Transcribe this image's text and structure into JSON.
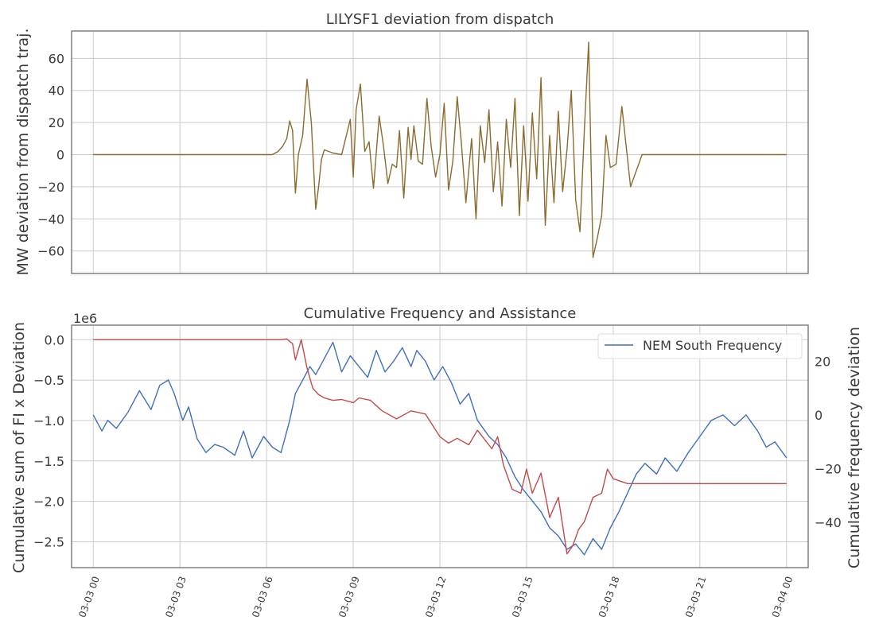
{
  "chart_data": [
    {
      "type": "line",
      "title": "LILYSF1 deviation from dispatch",
      "ylabel": "MW deviation from dispatch traj.",
      "xlim": [
        -0.75,
        24.75
      ],
      "ylim": [
        -74,
        77
      ],
      "yticks": [
        60,
        40,
        20,
        0,
        -20,
        -40,
        -60
      ],
      "ytick_labels": [
        "60",
        "40",
        "20",
        "0",
        "−20",
        "−40",
        "−60"
      ],
      "grid": true,
      "series": [
        {
          "color": "#8b6b2e",
          "x": [
            0,
            6.2,
            6.4,
            6.55,
            6.7,
            6.8,
            6.9,
            7.0,
            7.1,
            7.25,
            7.4,
            7.55,
            7.7,
            7.8,
            7.9,
            8.0,
            8.3,
            8.6,
            8.9,
            9.0,
            9.1,
            9.25,
            9.4,
            9.55,
            9.7,
            9.9,
            10.05,
            10.2,
            10.35,
            10.5,
            10.6,
            10.75,
            10.9,
            11.0,
            11.1,
            11.25,
            11.4,
            11.55,
            11.7,
            11.85,
            12.0,
            12.15,
            12.3,
            12.45,
            12.6,
            12.75,
            12.9,
            13.1,
            13.25,
            13.4,
            13.55,
            13.7,
            13.85,
            14.0,
            14.15,
            14.3,
            14.45,
            14.6,
            14.75,
            14.9,
            15.05,
            15.2,
            15.35,
            15.5,
            15.65,
            15.8,
            15.95,
            16.1,
            16.25,
            16.4,
            16.55,
            16.7,
            16.85,
            17.0,
            17.15,
            17.3,
            17.45,
            17.6,
            17.75,
            17.9,
            18.1,
            18.3,
            18.6,
            19.0,
            24
          ],
          "y": [
            0,
            0,
            2,
            5,
            10,
            21,
            15,
            -24,
            0,
            12,
            47,
            20,
            -34,
            -20,
            -3,
            3,
            1,
            0,
            22,
            -14,
            28,
            44,
            2,
            8,
            -21,
            24,
            5,
            -18,
            -6,
            -8,
            15,
            -27,
            17,
            -3,
            18,
            -4,
            -6,
            35,
            5,
            -14,
            0,
            32,
            -22,
            -4,
            36,
            6,
            -30,
            10,
            -40,
            18,
            -5,
            28,
            -23,
            8,
            -32,
            22,
            -8,
            35,
            -38,
            18,
            -29,
            26,
            -15,
            48,
            -44,
            12,
            -30,
            27,
            -23,
            3,
            40,
            -28,
            -48,
            15,
            70,
            -64,
            -52,
            -38,
            12,
            -8,
            -6,
            30,
            -20,
            0,
            0
          ]
        }
      ]
    },
    {
      "type": "line",
      "title": "Cumulative Frequency and Assistance",
      "ylabel": "Cumulative sum of FI x Deviation",
      "y2label": "Cumulative frequency deviation",
      "offset_label": "1e6",
      "xlim": [
        -0.75,
        24.75
      ],
      "ylim": [
        -2.82,
        0.18
      ],
      "y2lim": [
        -56.8,
        33.4
      ],
      "yticks": [
        0.0,
        -0.5,
        -1.0,
        -1.5,
        -2.0,
        -2.5
      ],
      "ytick_labels": [
        "0.0",
        "−0.5",
        "−1.0",
        "−1.5",
        "−2.0",
        "−2.5"
      ],
      "y2ticks": [
        20,
        0,
        -20,
        -40
      ],
      "y2tick_labels": [
        "20",
        "0",
        "−20",
        "−40"
      ],
      "xtick_positions": [
        0,
        3,
        6,
        9,
        12,
        15,
        18,
        21,
        24
      ],
      "xticks": [
        "03-03 00",
        "03-03 03",
        "03-03 06",
        "03-03 09",
        "03-03 12",
        "03-03 15",
        "03-03 18",
        "03-03 21",
        "03-04 00"
      ],
      "grid": true,
      "legend": {
        "placement": "top-right",
        "entries": [
          "NEM South Frequency"
        ]
      },
      "series": [
        {
          "name": "NEM South Frequency",
          "axis": "right",
          "color": "#3f6fbf",
          "x": [
            0,
            0.3,
            0.5,
            0.8,
            1.2,
            1.6,
            2.0,
            2.3,
            2.6,
            2.8,
            3.1,
            3.3,
            3.6,
            3.9,
            4.2,
            4.5,
            4.9,
            5.2,
            5.5,
            5.9,
            6.2,
            6.5,
            6.8,
            7.0,
            7.2,
            7.5,
            7.7,
            8.0,
            8.3,
            8.6,
            8.9,
            9.2,
            9.5,
            9.8,
            10.1,
            10.4,
            10.7,
            11.0,
            11.2,
            11.5,
            11.8,
            12.1,
            12.4,
            12.7,
            13.0,
            13.3,
            13.7,
            14.0,
            14.3,
            14.6,
            14.9,
            15.2,
            15.5,
            15.8,
            16.1,
            16.4,
            16.7,
            17.0,
            17.3,
            17.6,
            17.9,
            18.2,
            18.5,
            18.8,
            19.1,
            19.5,
            19.8,
            20.2,
            20.6,
            21.0,
            21.4,
            21.8,
            22.2,
            22.6,
            23.0,
            23.3,
            23.6,
            24.0
          ],
          "y": [
            0,
            -6,
            -2,
            -5,
            1,
            9,
            2,
            11,
            13,
            8,
            -2,
            3,
            -9,
            -14,
            -11,
            -12,
            -15,
            -6,
            -16,
            -8,
            -12,
            -14,
            -2,
            8,
            12,
            18,
            15,
            21,
            27,
            16,
            22,
            18,
            14,
            24,
            16,
            20,
            25,
            18,
            24,
            20,
            13,
            18,
            12,
            4,
            8,
            -2,
            -8,
            -11,
            -16,
            -23,
            -28,
            -32,
            -36,
            -42,
            -45,
            -50,
            -48,
            -52,
            -46,
            -50,
            -42,
            -36,
            -29,
            -22,
            -18,
            -22,
            -16,
            -21,
            -14,
            -8,
            -2,
            0,
            -4,
            0,
            -6,
            -12,
            -10,
            -16
          ]
        },
        {
          "axis": "left",
          "color": "#c34a4a",
          "x": [
            0,
            6.5,
            6.7,
            6.9,
            7.0,
            7.2,
            7.4,
            7.6,
            7.8,
            8.0,
            8.3,
            8.6,
            9.0,
            9.2,
            9.6,
            10.0,
            10.5,
            11.0,
            11.5,
            12.0,
            12.3,
            12.6,
            13.0,
            13.3,
            13.8,
            14.0,
            14.2,
            14.5,
            14.8,
            15.0,
            15.2,
            15.5,
            15.8,
            16.1,
            16.4,
            16.6,
            16.8,
            17.0,
            17.3,
            17.6,
            17.8,
            18.0,
            18.5,
            24
          ],
          "y": [
            0,
            0,
            0.01,
            -0.05,
            -0.25,
            0.0,
            -0.35,
            -0.6,
            -0.68,
            -0.72,
            -0.75,
            -0.74,
            -0.78,
            -0.72,
            -0.75,
            -0.88,
            -0.98,
            -0.88,
            -0.92,
            -1.2,
            -1.28,
            -1.22,
            -1.3,
            -1.12,
            -1.35,
            -1.2,
            -1.55,
            -1.85,
            -1.9,
            -1.6,
            -1.9,
            -1.65,
            -2.2,
            -1.95,
            -2.65,
            -2.55,
            -2.35,
            -2.25,
            -1.95,
            -1.9,
            -1.6,
            -1.72,
            -1.78,
            -1.78
          ]
        }
      ]
    }
  ]
}
